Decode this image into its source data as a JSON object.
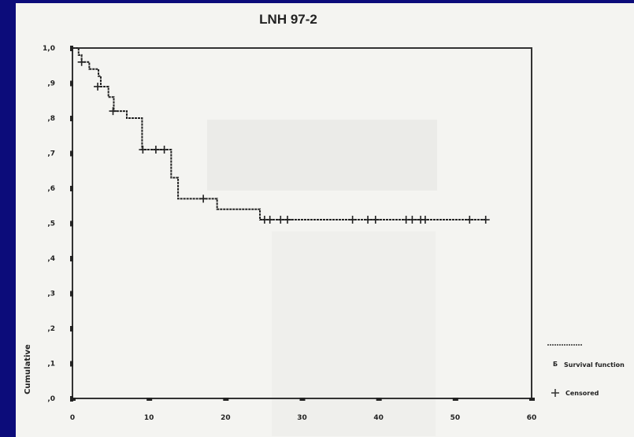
{
  "chart_data": {
    "type": "line",
    "step": true,
    "title": "LNH 97-2",
    "xlabel": "",
    "ylabel": "Cumulative",
    "xlim": [
      0,
      60
    ],
    "ylim": [
      0,
      1.0
    ],
    "xticks": [
      0,
      10,
      20,
      30,
      40,
      50,
      60
    ],
    "xtick_labels": [
      "0",
      "10",
      "20",
      "30",
      "40",
      "50",
      "60"
    ],
    "yticks": [
      0.0,
      0.1,
      0.2,
      0.3,
      0.4,
      0.5,
      0.6,
      0.7,
      0.8,
      0.9,
      1.0
    ],
    "ytick_labels": [
      ",0",
      ",1",
      ",2",
      ",3",
      ",4",
      ",5",
      ",6",
      ",7",
      ",8",
      ",9",
      "1,0"
    ],
    "grid": false,
    "legend_position": "right",
    "series": [
      {
        "name": "Survival function",
        "color": "#222222",
        "x": [
          0,
          0.8,
          1.2,
          2.2,
          3.4,
          3.7,
          4.7,
          5.4,
          7.1,
          9.1,
          12.9,
          13.8,
          18.9,
          24.5,
          54.0
        ],
        "y": [
          1.0,
          0.98,
          0.96,
          0.94,
          0.92,
          0.89,
          0.86,
          0.82,
          0.8,
          0.71,
          0.63,
          0.57,
          0.54,
          0.51,
          0.51
        ]
      }
    ],
    "censored": {
      "name": "Censored",
      "x": [
        1.2,
        3.3,
        5.3,
        9.2,
        10.9,
        12.0,
        17.1,
        25.1,
        25.8,
        27.2,
        28.1,
        36.6,
        38.6,
        39.6,
        43.6,
        44.4,
        45.5,
        46.1,
        51.9,
        54.0
      ],
      "y": [
        0.96,
        0.89,
        0.82,
        0.71,
        0.71,
        0.71,
        0.57,
        0.51,
        0.51,
        0.51,
        0.51,
        0.51,
        0.51,
        0.51,
        0.51,
        0.51,
        0.51,
        0.51,
        0.51,
        0.51
      ]
    }
  }
}
